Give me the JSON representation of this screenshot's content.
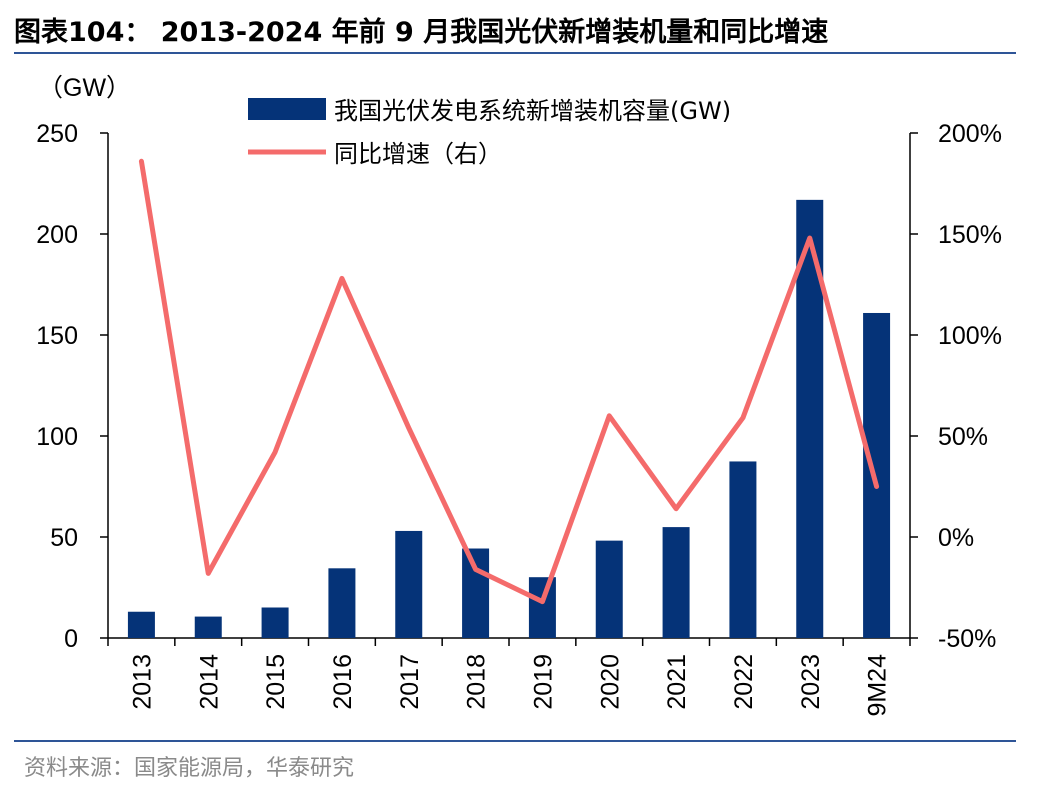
{
  "title": "图表104： 2013-2024 年前 9 月我国光伏新增装机量和同比增速",
  "source": "资料来源：国家能源局，华泰研究",
  "colors": {
    "bar": "#053378",
    "line": "#f46b6b",
    "rule": "#2e5597"
  },
  "chart_data": {
    "type": "bar+line",
    "categories": [
      "2013",
      "2014",
      "2015",
      "2016",
      "2017",
      "2018",
      "2019",
      "2020",
      "2021",
      "2022",
      "2023",
      "9M24"
    ],
    "series": [
      {
        "name": "我国光伏发电系统新增装机容量(GW)",
        "type": "bar",
        "axis": "left",
        "values": [
          13,
          10.6,
          15.1,
          34.5,
          53,
          44.3,
          30.1,
          48.2,
          54.9,
          87.4,
          216.9,
          160.9
        ]
      },
      {
        "name": "同比增速（右）",
        "type": "line",
        "axis": "right",
        "values": [
          1.86,
          -0.18,
          0.42,
          1.28,
          0.54,
          -0.16,
          -0.32,
          0.6,
          0.14,
          0.59,
          1.48,
          0.25
        ]
      }
    ],
    "left_axis": {
      "unit_label": "（GW）",
      "ylim": [
        0,
        250
      ],
      "ticks": [
        "0",
        "50",
        "100",
        "150",
        "200",
        "250"
      ]
    },
    "right_axis": {
      "ylim": [
        -0.5,
        2.0
      ],
      "ticks": [
        "-50%",
        "0%",
        "50%",
        "100%",
        "150%",
        "200%"
      ]
    },
    "legend_position": "top-center",
    "grid": false
  }
}
